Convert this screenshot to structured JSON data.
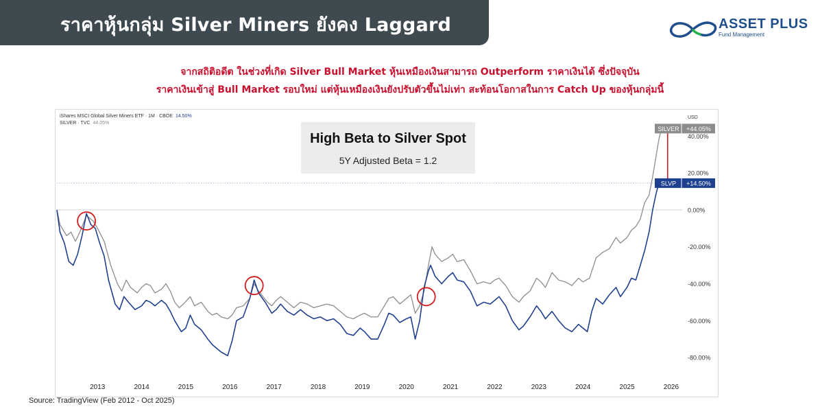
{
  "header": {
    "title": "ราคาหุ้นกลุ่ม Silver Miners ยังคง Laggard"
  },
  "logo": {
    "name": "ASSET PLUS",
    "tagline": "Fund Management"
  },
  "subtitle": {
    "line1": "จากสถิติอดีต ในช่วงที่เกิด Silver Bull Market หุ้นเหมืองเงินสามารถ Outperform ราคาเงินได้ ซึ่งปัจจุบัน",
    "line2": "ราคาเงินเข้าสู่ Bull Market รอบใหม่ แต่หุ้นเหมืองเงินยังปรับตัวขึ้นไม่เท่า สะท้อนโอกาสในการ Catch Up ของหุ้นกลุ่มนี้"
  },
  "annotation": {
    "title": "High Beta to Silver Spot",
    "subtitle": "5Y Adjusted Beta = 1.2"
  },
  "source": "Source: TradingView  (Feb 2012 - Oct 2025)",
  "legend": {
    "row1_label": "iShares MSCI Global Silver Miners ETF · 1M · CBOE",
    "row1_value": "14.50%",
    "row2_label": "SILVER · TVC",
    "row2_value": "44.05%"
  },
  "colors": {
    "banner": "#3e4a50",
    "slvp": "#1f3f8f",
    "silver": "#8c8c8c",
    "highlight": "#d01c1c",
    "subtitle": "#c8102e"
  },
  "chart_data": {
    "type": "line",
    "currency_label": "USD",
    "x_ticks": [
      "2013",
      "2014",
      "2015",
      "2016",
      "2017",
      "2018",
      "2019",
      "2020",
      "2021",
      "2022",
      "2023",
      "2024",
      "2025",
      "2026"
    ],
    "x_range": [
      2012.08,
      2026.25
    ],
    "ylim": [
      -90,
      52
    ],
    "y_ticks": [
      {
        "value": 40,
        "label": "40.00%"
      },
      {
        "value": 20,
        "label": "20.00%"
      },
      {
        "value": 0,
        "label": "0.00%"
      },
      {
        "value": -20,
        "label": "-20.00%"
      },
      {
        "value": -40,
        "label": "-40.00%"
      },
      {
        "value": -60,
        "label": "-60.00%"
      },
      {
        "value": -80,
        "label": "-80.00%"
      }
    ],
    "series": [
      {
        "name": "SILVER",
        "last_label": "+44.05%",
        "points": [
          [
            2012.08,
            0
          ],
          [
            2012.15,
            -8
          ],
          [
            2012.3,
            -14
          ],
          [
            2012.4,
            -12
          ],
          [
            2012.5,
            -17
          ],
          [
            2012.6,
            -12
          ],
          [
            2012.75,
            -3
          ],
          [
            2012.9,
            -6
          ],
          [
            2013.0,
            -10
          ],
          [
            2013.15,
            -17
          ],
          [
            2013.3,
            -30
          ],
          [
            2013.45,
            -40
          ],
          [
            2013.55,
            -44
          ],
          [
            2013.65,
            -38
          ],
          [
            2013.75,
            -42
          ],
          [
            2013.9,
            -45
          ],
          [
            2014.0,
            -42
          ],
          [
            2014.1,
            -40
          ],
          [
            2014.2,
            -41
          ],
          [
            2014.3,
            -45
          ],
          [
            2014.45,
            -43
          ],
          [
            2014.55,
            -40
          ],
          [
            2014.65,
            -44
          ],
          [
            2014.75,
            -50
          ],
          [
            2014.85,
            -53
          ],
          [
            2014.95,
            -51
          ],
          [
            2015.1,
            -47
          ],
          [
            2015.2,
            -52
          ],
          [
            2015.35,
            -50
          ],
          [
            2015.5,
            -55
          ],
          [
            2015.6,
            -57
          ],
          [
            2015.7,
            -56
          ],
          [
            2015.8,
            -58
          ],
          [
            2015.95,
            -59
          ],
          [
            2016.05,
            -57
          ],
          [
            2016.15,
            -53
          ],
          [
            2016.3,
            -52
          ],
          [
            2016.45,
            -48
          ],
          [
            2016.55,
            -40
          ],
          [
            2016.65,
            -44
          ],
          [
            2016.75,
            -47
          ],
          [
            2016.85,
            -50
          ],
          [
            2016.95,
            -52
          ],
          [
            2017.05,
            -49
          ],
          [
            2017.15,
            -47
          ],
          [
            2017.3,
            -50
          ],
          [
            2017.45,
            -53
          ],
          [
            2017.6,
            -50
          ],
          [
            2017.75,
            -51
          ],
          [
            2017.9,
            -53
          ],
          [
            2018.05,
            -52
          ],
          [
            2018.2,
            -51
          ],
          [
            2018.35,
            -52
          ],
          [
            2018.5,
            -55
          ],
          [
            2018.65,
            -58
          ],
          [
            2018.8,
            -59
          ],
          [
            2018.95,
            -57
          ],
          [
            2019.05,
            -56
          ],
          [
            2019.2,
            -58
          ],
          [
            2019.35,
            -58
          ],
          [
            2019.5,
            -52
          ],
          [
            2019.6,
            -48
          ],
          [
            2019.7,
            -47
          ],
          [
            2019.85,
            -51
          ],
          [
            2020.0,
            -48
          ],
          [
            2020.1,
            -46
          ],
          [
            2020.2,
            -56
          ],
          [
            2020.3,
            -52
          ],
          [
            2020.4,
            -44
          ],
          [
            2020.5,
            -30
          ],
          [
            2020.58,
            -20
          ],
          [
            2020.65,
            -24
          ],
          [
            2020.8,
            -28
          ],
          [
            2020.95,
            -26
          ],
          [
            2021.05,
            -24
          ],
          [
            2021.15,
            -28
          ],
          [
            2021.3,
            -27
          ],
          [
            2021.45,
            -33
          ],
          [
            2021.6,
            -40
          ],
          [
            2021.75,
            -39
          ],
          [
            2021.9,
            -40
          ],
          [
            2022.0,
            -38
          ],
          [
            2022.1,
            -37
          ],
          [
            2022.25,
            -41
          ],
          [
            2022.4,
            -47
          ],
          [
            2022.55,
            -50
          ],
          [
            2022.65,
            -47
          ],
          [
            2022.8,
            -44
          ],
          [
            2022.95,
            -37
          ],
          [
            2023.05,
            -39
          ],
          [
            2023.15,
            -42
          ],
          [
            2023.3,
            -34
          ],
          [
            2023.45,
            -38
          ],
          [
            2023.6,
            -39
          ],
          [
            2023.75,
            -41
          ],
          [
            2023.9,
            -37
          ],
          [
            2024.0,
            -39
          ],
          [
            2024.15,
            -37
          ],
          [
            2024.3,
            -26
          ],
          [
            2024.45,
            -23
          ],
          [
            2024.6,
            -21
          ],
          [
            2024.75,
            -15
          ],
          [
            2024.85,
            -18
          ],
          [
            2025.0,
            -15
          ],
          [
            2025.1,
            -11
          ],
          [
            2025.2,
            -9
          ],
          [
            2025.3,
            -5
          ],
          [
            2025.4,
            4
          ],
          [
            2025.5,
            8
          ],
          [
            2025.58,
            18
          ],
          [
            2025.65,
            28
          ],
          [
            2025.72,
            38
          ],
          [
            2025.78,
            44.05
          ]
        ]
      },
      {
        "name": "SLVP",
        "last_label": "+14.50%",
        "points": [
          [
            2012.08,
            0
          ],
          [
            2012.15,
            -12
          ],
          [
            2012.25,
            -18
          ],
          [
            2012.35,
            -28
          ],
          [
            2012.45,
            -30
          ],
          [
            2012.55,
            -24
          ],
          [
            2012.65,
            -14
          ],
          [
            2012.75,
            -2
          ],
          [
            2012.85,
            -8
          ],
          [
            2012.95,
            -10
          ],
          [
            2013.05,
            -18
          ],
          [
            2013.15,
            -25
          ],
          [
            2013.25,
            -38
          ],
          [
            2013.4,
            -51
          ],
          [
            2013.5,
            -54
          ],
          [
            2013.6,
            -47
          ],
          [
            2013.7,
            -50
          ],
          [
            2013.85,
            -54
          ],
          [
            2014.0,
            -52
          ],
          [
            2014.1,
            -49
          ],
          [
            2014.2,
            -50
          ],
          [
            2014.3,
            -52
          ],
          [
            2014.45,
            -49
          ],
          [
            2014.55,
            -51
          ],
          [
            2014.65,
            -55
          ],
          [
            2014.75,
            -60
          ],
          [
            2014.9,
            -66
          ],
          [
            2015.0,
            -64
          ],
          [
            2015.1,
            -57
          ],
          [
            2015.2,
            -62
          ],
          [
            2015.35,
            -65
          ],
          [
            2015.5,
            -70
          ],
          [
            2015.6,
            -73
          ],
          [
            2015.7,
            -75
          ],
          [
            2015.8,
            -77
          ],
          [
            2015.95,
            -79
          ],
          [
            2016.05,
            -71
          ],
          [
            2016.15,
            -60
          ],
          [
            2016.3,
            -58
          ],
          [
            2016.45,
            -48
          ],
          [
            2016.55,
            -38
          ],
          [
            2016.65,
            -45
          ],
          [
            2016.8,
            -50
          ],
          [
            2016.95,
            -56
          ],
          [
            2017.05,
            -54
          ],
          [
            2017.15,
            -51
          ],
          [
            2017.3,
            -55
          ],
          [
            2017.45,
            -57
          ],
          [
            2017.6,
            -54
          ],
          [
            2017.75,
            -57
          ],
          [
            2017.9,
            -59
          ],
          [
            2018.05,
            -58
          ],
          [
            2018.2,
            -60
          ],
          [
            2018.35,
            -59
          ],
          [
            2018.5,
            -62
          ],
          [
            2018.65,
            -67
          ],
          [
            2018.8,
            -68
          ],
          [
            2018.95,
            -64
          ],
          [
            2019.05,
            -66
          ],
          [
            2019.2,
            -70
          ],
          [
            2019.35,
            -70
          ],
          [
            2019.5,
            -62
          ],
          [
            2019.6,
            -56
          ],
          [
            2019.7,
            -57
          ],
          [
            2019.85,
            -61
          ],
          [
            2020.0,
            -59
          ],
          [
            2020.1,
            -58
          ],
          [
            2020.2,
            -70
          ],
          [
            2020.3,
            -60
          ],
          [
            2020.4,
            -42
          ],
          [
            2020.5,
            -33
          ],
          [
            2020.55,
            -30
          ],
          [
            2020.65,
            -36
          ],
          [
            2020.8,
            -40
          ],
          [
            2020.95,
            -36
          ],
          [
            2021.05,
            -34
          ],
          [
            2021.15,
            -38
          ],
          [
            2021.3,
            -39
          ],
          [
            2021.45,
            -44
          ],
          [
            2021.6,
            -52
          ],
          [
            2021.75,
            -50
          ],
          [
            2021.9,
            -51
          ],
          [
            2022.0,
            -49
          ],
          [
            2022.1,
            -47
          ],
          [
            2022.25,
            -52
          ],
          [
            2022.4,
            -60
          ],
          [
            2022.55,
            -65
          ],
          [
            2022.65,
            -63
          ],
          [
            2022.8,
            -58
          ],
          [
            2022.95,
            -52
          ],
          [
            2023.05,
            -55
          ],
          [
            2023.15,
            -59
          ],
          [
            2023.3,
            -55
          ],
          [
            2023.45,
            -60
          ],
          [
            2023.6,
            -64
          ],
          [
            2023.75,
            -66
          ],
          [
            2023.9,
            -62
          ],
          [
            2024.0,
            -64
          ],
          [
            2024.1,
            -66
          ],
          [
            2024.2,
            -55
          ],
          [
            2024.3,
            -48
          ],
          [
            2024.45,
            -51
          ],
          [
            2024.6,
            -46
          ],
          [
            2024.75,
            -42
          ],
          [
            2024.85,
            -47
          ],
          [
            2025.0,
            -42
          ],
          [
            2025.1,
            -37
          ],
          [
            2025.2,
            -38
          ],
          [
            2025.3,
            -30
          ],
          [
            2025.4,
            -22
          ],
          [
            2025.5,
            -12
          ],
          [
            2025.58,
            0
          ],
          [
            2025.65,
            8
          ],
          [
            2025.72,
            14.5
          ]
        ]
      }
    ],
    "highlights": [
      {
        "x": 2012.75,
        "y": -6
      },
      {
        "x": 2016.55,
        "y": -41
      },
      {
        "x": 2020.45,
        "y": -47
      }
    ],
    "gap_bar": {
      "x": 2025.92,
      "from": 14.5,
      "to": 44.05
    }
  }
}
